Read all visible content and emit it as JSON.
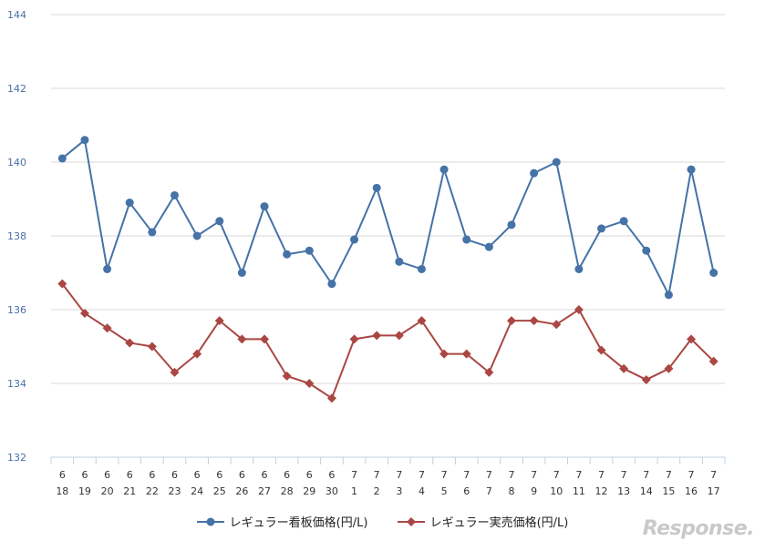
{
  "chart_data": {
    "type": "line",
    "ylim": [
      132,
      144
    ],
    "yticks": [
      132,
      134,
      136,
      138,
      140,
      142,
      144
    ],
    "grid": true,
    "legend_position": "bottom",
    "categories": [
      {
        "month": "6",
        "day": "18"
      },
      {
        "month": "6",
        "day": "19"
      },
      {
        "month": "6",
        "day": "20"
      },
      {
        "month": "6",
        "day": "21"
      },
      {
        "month": "6",
        "day": "22"
      },
      {
        "month": "6",
        "day": "23"
      },
      {
        "month": "6",
        "day": "24"
      },
      {
        "month": "6",
        "day": "25"
      },
      {
        "month": "6",
        "day": "26"
      },
      {
        "month": "6",
        "day": "27"
      },
      {
        "month": "6",
        "day": "28"
      },
      {
        "month": "6",
        "day": "29"
      },
      {
        "month": "6",
        "day": "30"
      },
      {
        "month": "7",
        "day": "1"
      },
      {
        "month": "7",
        "day": "2"
      },
      {
        "month": "7",
        "day": "3"
      },
      {
        "month": "7",
        "day": "4"
      },
      {
        "month": "7",
        "day": "5"
      },
      {
        "month": "7",
        "day": "6"
      },
      {
        "month": "7",
        "day": "7"
      },
      {
        "month": "7",
        "day": "8"
      },
      {
        "month": "7",
        "day": "9"
      },
      {
        "month": "7",
        "day": "10"
      },
      {
        "month": "7",
        "day": "11"
      },
      {
        "month": "7",
        "day": "12"
      },
      {
        "month": "7",
        "day": "13"
      },
      {
        "month": "7",
        "day": "14"
      },
      {
        "month": "7",
        "day": "15"
      },
      {
        "month": "7",
        "day": "16"
      },
      {
        "month": "7",
        "day": "17"
      }
    ],
    "series": [
      {
        "name": "レギュラー看板価格(円/L)",
        "color": "#4572a7",
        "marker": "circle",
        "values": [
          140.1,
          140.6,
          137.1,
          138.9,
          138.1,
          139.1,
          138.0,
          138.4,
          137.0,
          138.8,
          137.5,
          137.6,
          136.7,
          137.9,
          139.3,
          137.3,
          137.1,
          139.8,
          137.9,
          137.7,
          138.3,
          139.7,
          140.0,
          137.1,
          138.2,
          138.4,
          137.6,
          136.4,
          139.8,
          137.0
        ]
      },
      {
        "name": "レギュラー実売価格(円/L)",
        "color": "#aa4643",
        "marker": "diamond",
        "values": [
          136.7,
          135.9,
          135.5,
          135.1,
          135.0,
          134.3,
          134.8,
          135.7,
          135.2,
          135.2,
          134.2,
          134.0,
          133.6,
          135.2,
          135.3,
          135.3,
          135.7,
          134.8,
          134.8,
          134.3,
          135.7,
          135.7,
          135.6,
          136.0,
          134.9,
          134.4,
          134.1,
          134.4,
          135.2,
          134.6
        ]
      }
    ]
  },
  "watermark": "Response."
}
